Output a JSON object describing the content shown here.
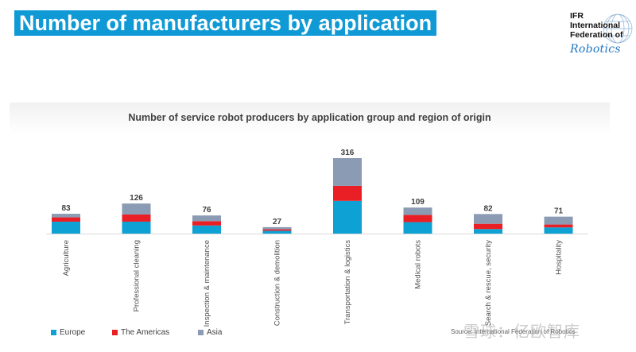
{
  "slide": {
    "title": "Number of manufacturers by application"
  },
  "logo": {
    "line1": "IFR",
    "line2": "International",
    "line3": "Federation of",
    "script": "Robotics"
  },
  "source_text": "Source: International Federation of Robotics",
  "watermark_text": "雪球：亿欧智库",
  "colors": {
    "title_bg": "#0f9ad6",
    "europe": "#0ea1d3",
    "americas": "#ea1f25",
    "asia": "#8a9bb3"
  },
  "chart_data": {
    "type": "bar",
    "stacked": true,
    "title": "Number of service robot producers by application group and region of origin",
    "categories": [
      "Agriculture",
      "Professional cleaning",
      "Inspection & maintenance",
      "Construction & demolition",
      "Transportation & logistics",
      "Medical robots",
      "Search & rescue, security",
      "Hospitality"
    ],
    "totals": [
      83,
      126,
      76,
      27,
      316,
      109,
      82,
      71
    ],
    "series": [
      {
        "name": "Europe",
        "values": [
          50,
          50,
          34,
          12,
          137,
          48,
          19,
          26
        ],
        "color": "#0ea1d3"
      },
      {
        "name": "The Americas",
        "values": [
          18,
          30,
          18,
          6,
          63,
          30,
          22,
          12
        ],
        "color": "#ea1f25"
      },
      {
        "name": "Asia",
        "values": [
          15,
          46,
          24,
          9,
          116,
          31,
          41,
          33
        ],
        "color": "#8a9bb3"
      }
    ],
    "ylim": [
      0,
      316
    ],
    "legend_position": "bottom",
    "grid": false
  }
}
